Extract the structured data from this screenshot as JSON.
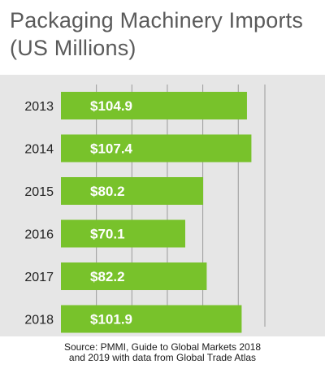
{
  "title": "Packaging Machinery Imports\n(US Millions)",
  "source": "Source: PMMI, Guide to Global Markets 2018\nand 2019 with data from Global Trade Atlas",
  "colors": {
    "bar": "#78c22b",
    "bar_label": "#ffffff",
    "panel": "#e6e6e6",
    "grid": "#9a9a9a",
    "text": "#222222"
  },
  "chart_data": {
    "type": "bar",
    "orientation": "horizontal",
    "title": "Packaging Machinery Imports (US Millions)",
    "categories": [
      "2013",
      "2014",
      "2015",
      "2016",
      "2017",
      "2018"
    ],
    "values": [
      104.9,
      107.4,
      80.2,
      70.1,
      82.2,
      101.9
    ],
    "data_labels": [
      "$104.9",
      "$107.4",
      "$80.2",
      "$70.1",
      "$82.2",
      "$101.9"
    ],
    "xlim": [
      0,
      115
    ],
    "grid": true
  }
}
